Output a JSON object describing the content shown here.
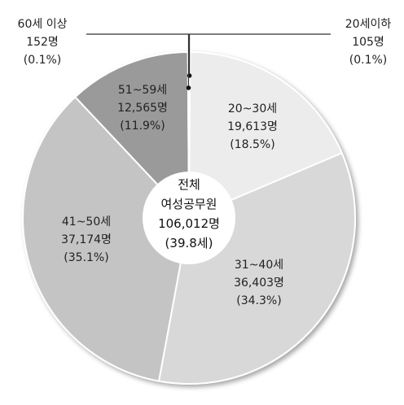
{
  "chart_data": {
    "type": "pie",
    "center": {
      "line1": "전체",
      "line2": "여성공무원",
      "line3": "106,012명",
      "line4": "(39.8세)"
    },
    "slices": [
      {
        "name": "20세이하",
        "count": "105명",
        "pct_label": "(0.1%)",
        "value": 0.1,
        "color": "#f2f2f2"
      },
      {
        "name": "20~30세",
        "count": "19,613명",
        "pct_label": "(18.5%)",
        "value": 18.5,
        "color": "#ececec"
      },
      {
        "name": "31~40세",
        "count": "36,403명",
        "pct_label": "(34.3%)",
        "value": 34.3,
        "color": "#d8d8d8"
      },
      {
        "name": "41~50세",
        "count": "37,174명",
        "pct_label": "(35.1%)",
        "value": 35.1,
        "color": "#c4c4c4"
      },
      {
        "name": "51~59세",
        "count": "12,565명",
        "pct_label": "(11.9%)",
        "value": 11.9,
        "color": "#9a9a9a"
      },
      {
        "name": "60세 이상",
        "count": "152명",
        "pct_label": "(0.1%)",
        "value": 0.1,
        "color": "#7a7a7a"
      }
    ],
    "outline_color": "#ffffff",
    "leader_color": "#333333"
  }
}
